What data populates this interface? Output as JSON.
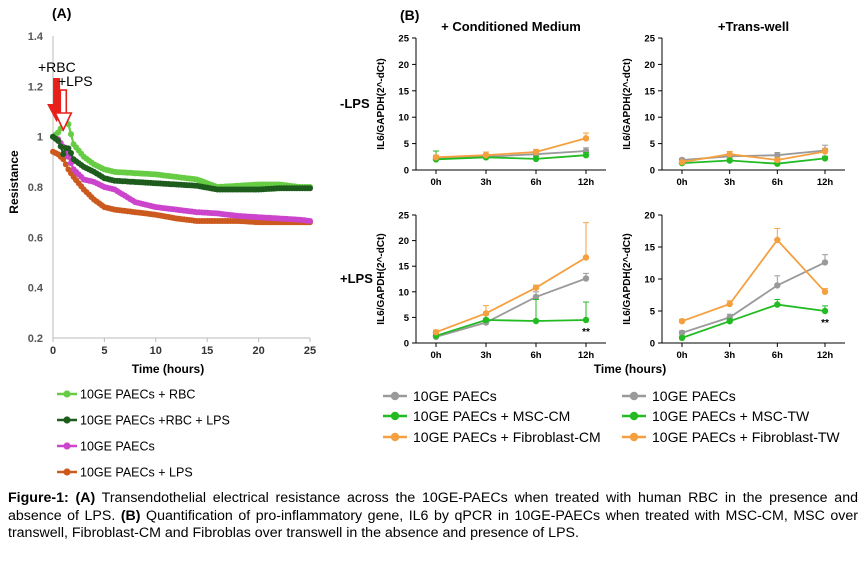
{
  "panel_a_label": "(A)",
  "panel_b_label": "(B)",
  "caption": {
    "label": "Figure-1:",
    "a_tag": "(A)",
    "a_text": " Transendothelial electrical resistance across the 10GE-PAECs when treated with human RBC in the presence and absence of LPS. ",
    "b_tag": "(B)",
    "b_text": " Quantification of pro-inflammatory gene, IL6 by qPCR in 10GE-PAECs when treated with MSC-CM, MSC over transwell, Fibroblast-CM and Fibroblas over transwell in the absence and presence of LPS."
  },
  "colors": {
    "rbc": "#66cc44",
    "rbc_lps": "#1e5c1e",
    "paecs": "#cc44cc",
    "paecs_lps": "#cc5a1e",
    "gray": "#9a9a9a",
    "green": "#22bb22",
    "orange": "#f5a040",
    "arrow": "#e8201c"
  },
  "chart_data": [
    {
      "type": "line",
      "panel": "A",
      "xlabel": "Time (hours)",
      "ylabel": "Resistance",
      "xlim": [
        0,
        25
      ],
      "ylim": [
        0.2,
        1.4
      ],
      "xticks": [
        "0",
        "5",
        "10",
        "15",
        "20",
        "25"
      ],
      "yticks": [
        "0.2",
        "0.4",
        "0.6",
        "0.8",
        "1",
        "1.2",
        "1.4"
      ],
      "annotations": [
        "+RBC",
        "+LPS"
      ],
      "annotation_x": [
        0.3,
        1.0
      ],
      "series": [
        {
          "name": "10GE PAECs + RBC",
          "color_key": "rbc",
          "x": [
            0,
            0.6,
            1.2,
            1.5,
            2,
            3,
            4,
            5,
            6,
            8,
            10,
            12,
            14,
            16,
            18,
            20,
            22,
            24,
            25
          ],
          "y": [
            1.0,
            1.02,
            1.07,
            1.05,
            0.97,
            0.92,
            0.89,
            0.87,
            0.86,
            0.855,
            0.85,
            0.84,
            0.83,
            0.8,
            0.805,
            0.81,
            0.81,
            0.8,
            0.8
          ]
        },
        {
          "name": "10GE PAECs +RBC + LPS",
          "color_key": "rbc_lps",
          "x": [
            0,
            0.6,
            1.0,
            1.3,
            1.6,
            2,
            3,
            4,
            5,
            6,
            8,
            10,
            12,
            14,
            16,
            18,
            20,
            22,
            24,
            25
          ],
          "y": [
            1.0,
            0.98,
            0.93,
            0.96,
            0.95,
            0.91,
            0.88,
            0.86,
            0.835,
            0.825,
            0.82,
            0.815,
            0.81,
            0.805,
            0.79,
            0.79,
            0.79,
            0.795,
            0.795,
            0.795
          ]
        },
        {
          "name": "10GE PAECs",
          "color_key": "paecs",
          "x": [
            0,
            0.5,
            1,
            1.5,
            2,
            3,
            4,
            5,
            6,
            8,
            10,
            12,
            14,
            16,
            18,
            20,
            22,
            24,
            25
          ],
          "y": [
            1.0,
            0.99,
            0.96,
            0.92,
            0.87,
            0.83,
            0.82,
            0.8,
            0.79,
            0.74,
            0.72,
            0.71,
            0.7,
            0.695,
            0.685,
            0.68,
            0.675,
            0.67,
            0.665
          ]
        },
        {
          "name": "10GE PAECs + LPS",
          "color_key": "paecs_lps",
          "x": [
            0,
            0.5,
            1,
            1.5,
            2,
            3,
            4,
            5,
            6,
            8,
            10,
            12,
            14,
            16,
            18,
            20,
            22,
            24,
            25
          ],
          "y": [
            0.94,
            0.93,
            0.91,
            0.87,
            0.84,
            0.79,
            0.75,
            0.72,
            0.71,
            0.7,
            0.69,
            0.675,
            0.665,
            0.665,
            0.665,
            0.66,
            0.66,
            0.66,
            0.66
          ]
        }
      ]
    },
    {
      "type": "line",
      "panel": "B",
      "column_title": "+ Conditioned Medium",
      "row_label": "-LPS",
      "ylabel": "IL6/GAPDH(2^-dCt)",
      "categories": [
        "0h",
        "3h",
        "6h",
        "12h"
      ],
      "ylim": [
        0,
        25
      ],
      "yticks": [
        "0",
        "5",
        "10",
        "15",
        "20",
        "25"
      ],
      "sig_label": "",
      "series": [
        {
          "color_key": "gray",
          "values": [
            2.2,
            2.5,
            3.0,
            3.6
          ],
          "err": [
            0.4,
            0.4,
            0.5,
            0.6
          ]
        },
        {
          "color_key": "green",
          "values": [
            2.0,
            2.4,
            2.1,
            2.8
          ],
          "err": [
            1.6,
            0.6,
            0.5,
            0.5
          ]
        },
        {
          "color_key": "orange",
          "values": [
            2.4,
            2.8,
            3.4,
            6.0
          ],
          "err": [
            0.4,
            0.6,
            0.5,
            1.0
          ]
        }
      ]
    },
    {
      "type": "line",
      "panel": "B",
      "column_title": "+Trans-well",
      "row_label": "",
      "ylabel": "IL6/GAPDH(2^-dCt)",
      "categories": [
        "0h",
        "3h",
        "6h",
        "12h"
      ],
      "ylim": [
        0,
        25
      ],
      "yticks": [
        "0",
        "5",
        "10",
        "15",
        "20",
        "25"
      ],
      "sig_label": "",
      "series": [
        {
          "color_key": "gray",
          "values": [
            1.9,
            2.6,
            2.8,
            3.7
          ],
          "err": [
            0.3,
            0.5,
            0.5,
            1.0
          ]
        },
        {
          "color_key": "green",
          "values": [
            1.3,
            1.8,
            1.2,
            2.2
          ],
          "err": [
            0.3,
            0.3,
            0.3,
            0.4
          ]
        },
        {
          "color_key": "orange",
          "values": [
            1.5,
            3.0,
            1.9,
            3.5
          ],
          "err": [
            0.3,
            0.5,
            0.4,
            0.6
          ]
        }
      ]
    },
    {
      "type": "line",
      "panel": "B",
      "column_title": "",
      "row_label": "+LPS",
      "ylabel": "IL6/GAPDH(2^-dCt)",
      "categories": [
        "0h",
        "3h",
        "6h",
        "12h"
      ],
      "ylim": [
        0,
        25
      ],
      "yticks": [
        "0",
        "5",
        "10",
        "15",
        "20",
        "25"
      ],
      "sig_label": "**",
      "series": [
        {
          "color_key": "gray",
          "values": [
            1.2,
            4.0,
            9.0,
            12.6
          ],
          "err": [
            0.4,
            0.8,
            1.0,
            1.0
          ]
        },
        {
          "color_key": "green",
          "values": [
            1.4,
            4.5,
            4.3,
            4.5
          ],
          "err": [
            0.4,
            1.0,
            4.2,
            3.5
          ]
        },
        {
          "color_key": "orange",
          "values": [
            2.1,
            5.8,
            10.8,
            16.7
          ],
          "err": [
            0.4,
            1.5,
            0.5,
            6.8
          ]
        }
      ]
    },
    {
      "type": "line",
      "panel": "B",
      "column_title": "",
      "row_label": "",
      "ylabel": "IL6/GAPDH(2^-dCt)",
      "categories": [
        "0h",
        "3h",
        "6h",
        "12h"
      ],
      "ylim": [
        0,
        20
      ],
      "yticks": [
        "0",
        "5",
        "10",
        "15",
        "20"
      ],
      "sig_label": "**",
      "series": [
        {
          "color_key": "gray",
          "values": [
            1.6,
            4.0,
            9.0,
            12.6
          ],
          "err": [
            0.3,
            0.5,
            1.5,
            1.2
          ]
        },
        {
          "color_key": "green",
          "values": [
            0.8,
            3.4,
            6.0,
            5.0
          ],
          "err": [
            0.3,
            0.4,
            0.8,
            0.8
          ]
        },
        {
          "color_key": "orange",
          "values": [
            3.4,
            6.1,
            16.1,
            8.0
          ],
          "err": [
            0.3,
            0.5,
            1.8,
            0.5
          ]
        }
      ]
    }
  ],
  "panel_b_xlabel": "Time (hours)",
  "legend_a": [
    {
      "label": "10GE PAECs + RBC",
      "color_key": "rbc"
    },
    {
      "label": "10GE PAECs +RBC + LPS",
      "color_key": "rbc_lps"
    },
    {
      "label": "10GE PAECs",
      "color_key": "paecs"
    },
    {
      "label": "10GE PAECs + LPS",
      "color_key": "paecs_lps"
    }
  ],
  "legend_b_cm": [
    {
      "label": "10GE PAECs",
      "color_key": "gray"
    },
    {
      "label": "10GE PAECs + MSC-CM",
      "color_key": "green"
    },
    {
      "label": "10GE PAECs + Fibroblast-CM",
      "color_key": "orange"
    }
  ],
  "legend_b_tw": [
    {
      "label": "10GE PAECs",
      "color_key": "gray"
    },
    {
      "label": "10GE PAECs + MSC-TW",
      "color_key": "green"
    },
    {
      "label": "10GE PAECs + Fibroblast-TW",
      "color_key": "orange"
    }
  ]
}
